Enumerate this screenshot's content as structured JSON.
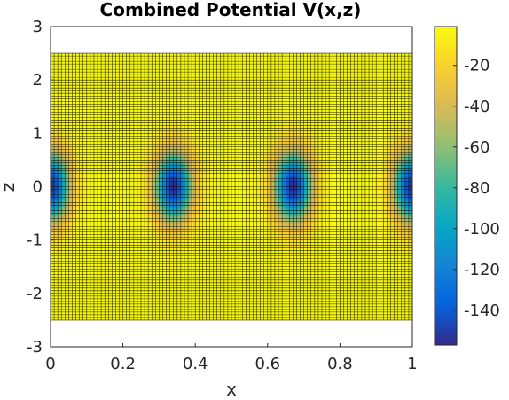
{
  "chart_data": {
    "type": "heatmap",
    "title": "Combined Potential V(x,z)",
    "xlabel": "x",
    "ylabel": "z",
    "xlim": [
      0,
      1
    ],
    "ylim": [
      -3,
      3
    ],
    "x_ticks": [
      "0",
      "0.2",
      "0.4",
      "0.6",
      "0.8",
      "1"
    ],
    "y_ticks": [
      "-3",
      "-2",
      "-1",
      "0",
      "1",
      "2",
      "3"
    ],
    "data_extent": {
      "x": [
        0,
        1
      ],
      "z": [
        -2.5,
        2.5
      ]
    },
    "grid": {
      "nx": 101,
      "nz": 101
    },
    "surface": {
      "description_of_field": "periodic potential wells along x at z=0",
      "well_centers_x": [
        0,
        0.34,
        0.67,
        1.0
      ],
      "well_depth": -157,
      "baseline": -1,
      "sigma_x": 0.035,
      "sigma_z": 0.45,
      "mesh_edges": true
    },
    "colorbar": {
      "colormap": "parula",
      "clim": [
        -157,
        -1
      ],
      "ticks": [
        -20,
        -40,
        -60,
        -80,
        -100,
        -120,
        -140
      ],
      "tick_labels": [
        "-20",
        "-40",
        "-60",
        "-80",
        "-100",
        "-120",
        "-140"
      ]
    }
  }
}
